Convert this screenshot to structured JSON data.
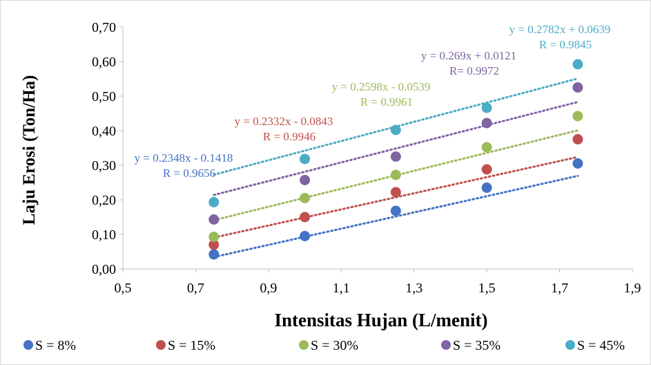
{
  "chart_data": {
    "type": "scatter",
    "xlabel": "Intensitas Hujan (L/menit)",
    "ylabel": "Laju Erosi (Ton/Ha)",
    "xlim": [
      0.5,
      1.9
    ],
    "ylim": [
      0.0,
      0.7
    ],
    "x_ticks": [
      "0,5",
      "0,7",
      "0,9",
      "1,1",
      "1,3",
      "1,5",
      "1,7",
      "1,9"
    ],
    "y_ticks": [
      "0,00",
      "0,10",
      "0,20",
      "0,30",
      "0,40",
      "0,50",
      "0,60",
      "0,70"
    ],
    "grid": false,
    "legend_position": "bottom",
    "trendline": "linear, dotted",
    "x": [
      0.75,
      1.0,
      1.25,
      1.5,
      1.75
    ],
    "series": [
      {
        "name": "S = 8%",
        "color": "#4472C4",
        "values": [
          0.042,
          0.095,
          0.168,
          0.235,
          0.305
        ],
        "equation": "y = 0.2348x - 0.1418",
        "r": "R = 0.9656",
        "slope": 0.2348,
        "intercept": -0.1418
      },
      {
        "name": "S = 15%",
        "color": "#C0504D",
        "values": [
          0.07,
          0.15,
          0.222,
          0.288,
          0.375
        ],
        "equation": "y = 0.2332x - 0.0843",
        "r": "R = 0.9946",
        "slope": 0.2332,
        "intercept": -0.0843
      },
      {
        "name": "S = 30%",
        "color": "#9BBB59",
        "values": [
          0.093,
          0.205,
          0.272,
          0.352,
          0.442
        ],
        "equation": "y = 0.2598x - 0.0539",
        "r": "R = 0.9961",
        "slope": 0.2598,
        "intercept": -0.0539
      },
      {
        "name": "S = 35%",
        "color": "#8064A2",
        "values": [
          0.143,
          0.257,
          0.325,
          0.422,
          0.525
        ],
        "equation": "y = 0.269x + 0.0121",
        "r": "R= 0.9972",
        "slope": 0.269,
        "intercept": 0.0121
      },
      {
        "name": "S = 45%",
        "color": "#4BACC6",
        "values": [
          0.193,
          0.318,
          0.402,
          0.466,
          0.592
        ],
        "equation": "y = 0.2782x + 0.0639",
        "r": "R = 0.9845",
        "slope": 0.2782,
        "intercept": 0.0639
      }
    ]
  }
}
